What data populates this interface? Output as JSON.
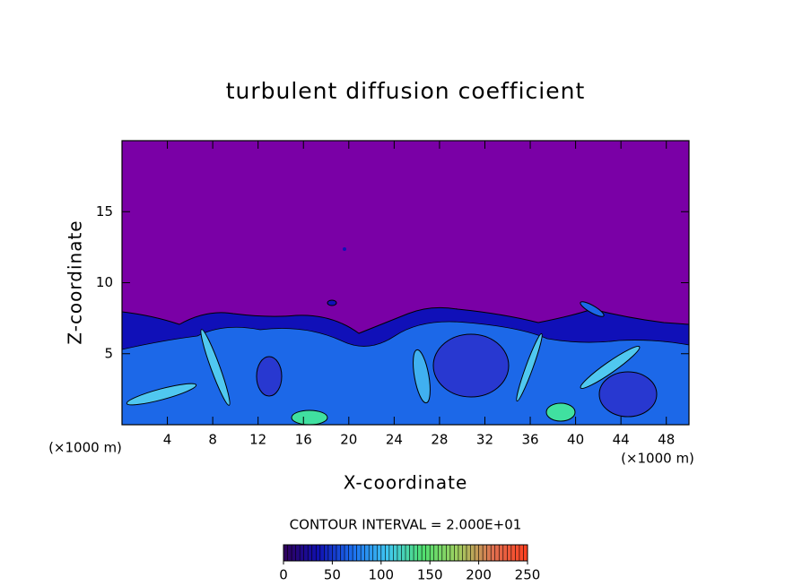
{
  "chart_data": {
    "type": "contour",
    "title": "turbulent diffusion coefficient",
    "x_label": "X-coordinate",
    "y_label": "Z-coordinate",
    "x_unit_label": "(×1000 m)",
    "y_unit_label": "(×1000 m)",
    "xlim": [
      0,
      50
    ],
    "xticks": [
      4,
      8,
      12,
      16,
      20,
      24,
      28,
      32,
      36,
      40,
      44,
      48
    ],
    "ylim": [
      0,
      20
    ],
    "yticks": [
      5,
      10,
      15
    ],
    "contour_interval_label": "CONTOUR INTERVAL = 2.000E+01",
    "colorbar": {
      "range": [
        0,
        250
      ],
      "ticks": [
        0,
        50,
        100,
        150,
        200,
        250
      ],
      "colors": [
        "#30005a",
        "#1010b0",
        "#1c70f0",
        "#40c8f0",
        "#50e070",
        "#a0d060",
        "#e07050",
        "#ff4020"
      ]
    }
  }
}
